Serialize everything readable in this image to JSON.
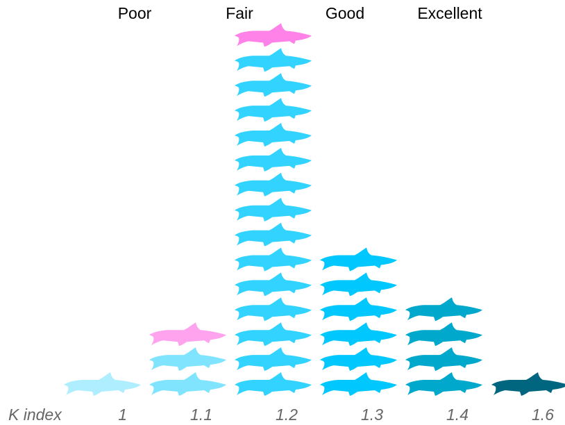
{
  "chart_data": {
    "type": "pictograph",
    "title": "",
    "xlabel": "K index",
    "ylabel": "",
    "unit_icon": "fish-icon",
    "categories": [
      "Poor",
      "Fair",
      "Good",
      "Excellent"
    ],
    "columns": [
      {
        "x_tick": "1",
        "count": 1,
        "highlighted_count": 0,
        "color": "#aeeeff"
      },
      {
        "x_tick": "1.1",
        "count": 3,
        "highlighted_count": 1,
        "color": "#80e4ff"
      },
      {
        "x_tick": "1.2",
        "count": 15,
        "highlighted_count": 1,
        "color": "#33d3ff"
      },
      {
        "x_tick": "1.3",
        "count": 6,
        "highlighted_count": 0,
        "color": "#00c8ff"
      },
      {
        "x_tick": "1.4",
        "count": 4,
        "highlighted_count": 0,
        "color": "#00a8cc"
      },
      {
        "x_tick": "1.6",
        "count": 1,
        "highlighted_count": 0,
        "color": "#006680"
      }
    ],
    "colors": {
      "highlight_short_column": "#ffa3ef",
      "highlight_tall_column": "#ff82e8"
    }
  }
}
